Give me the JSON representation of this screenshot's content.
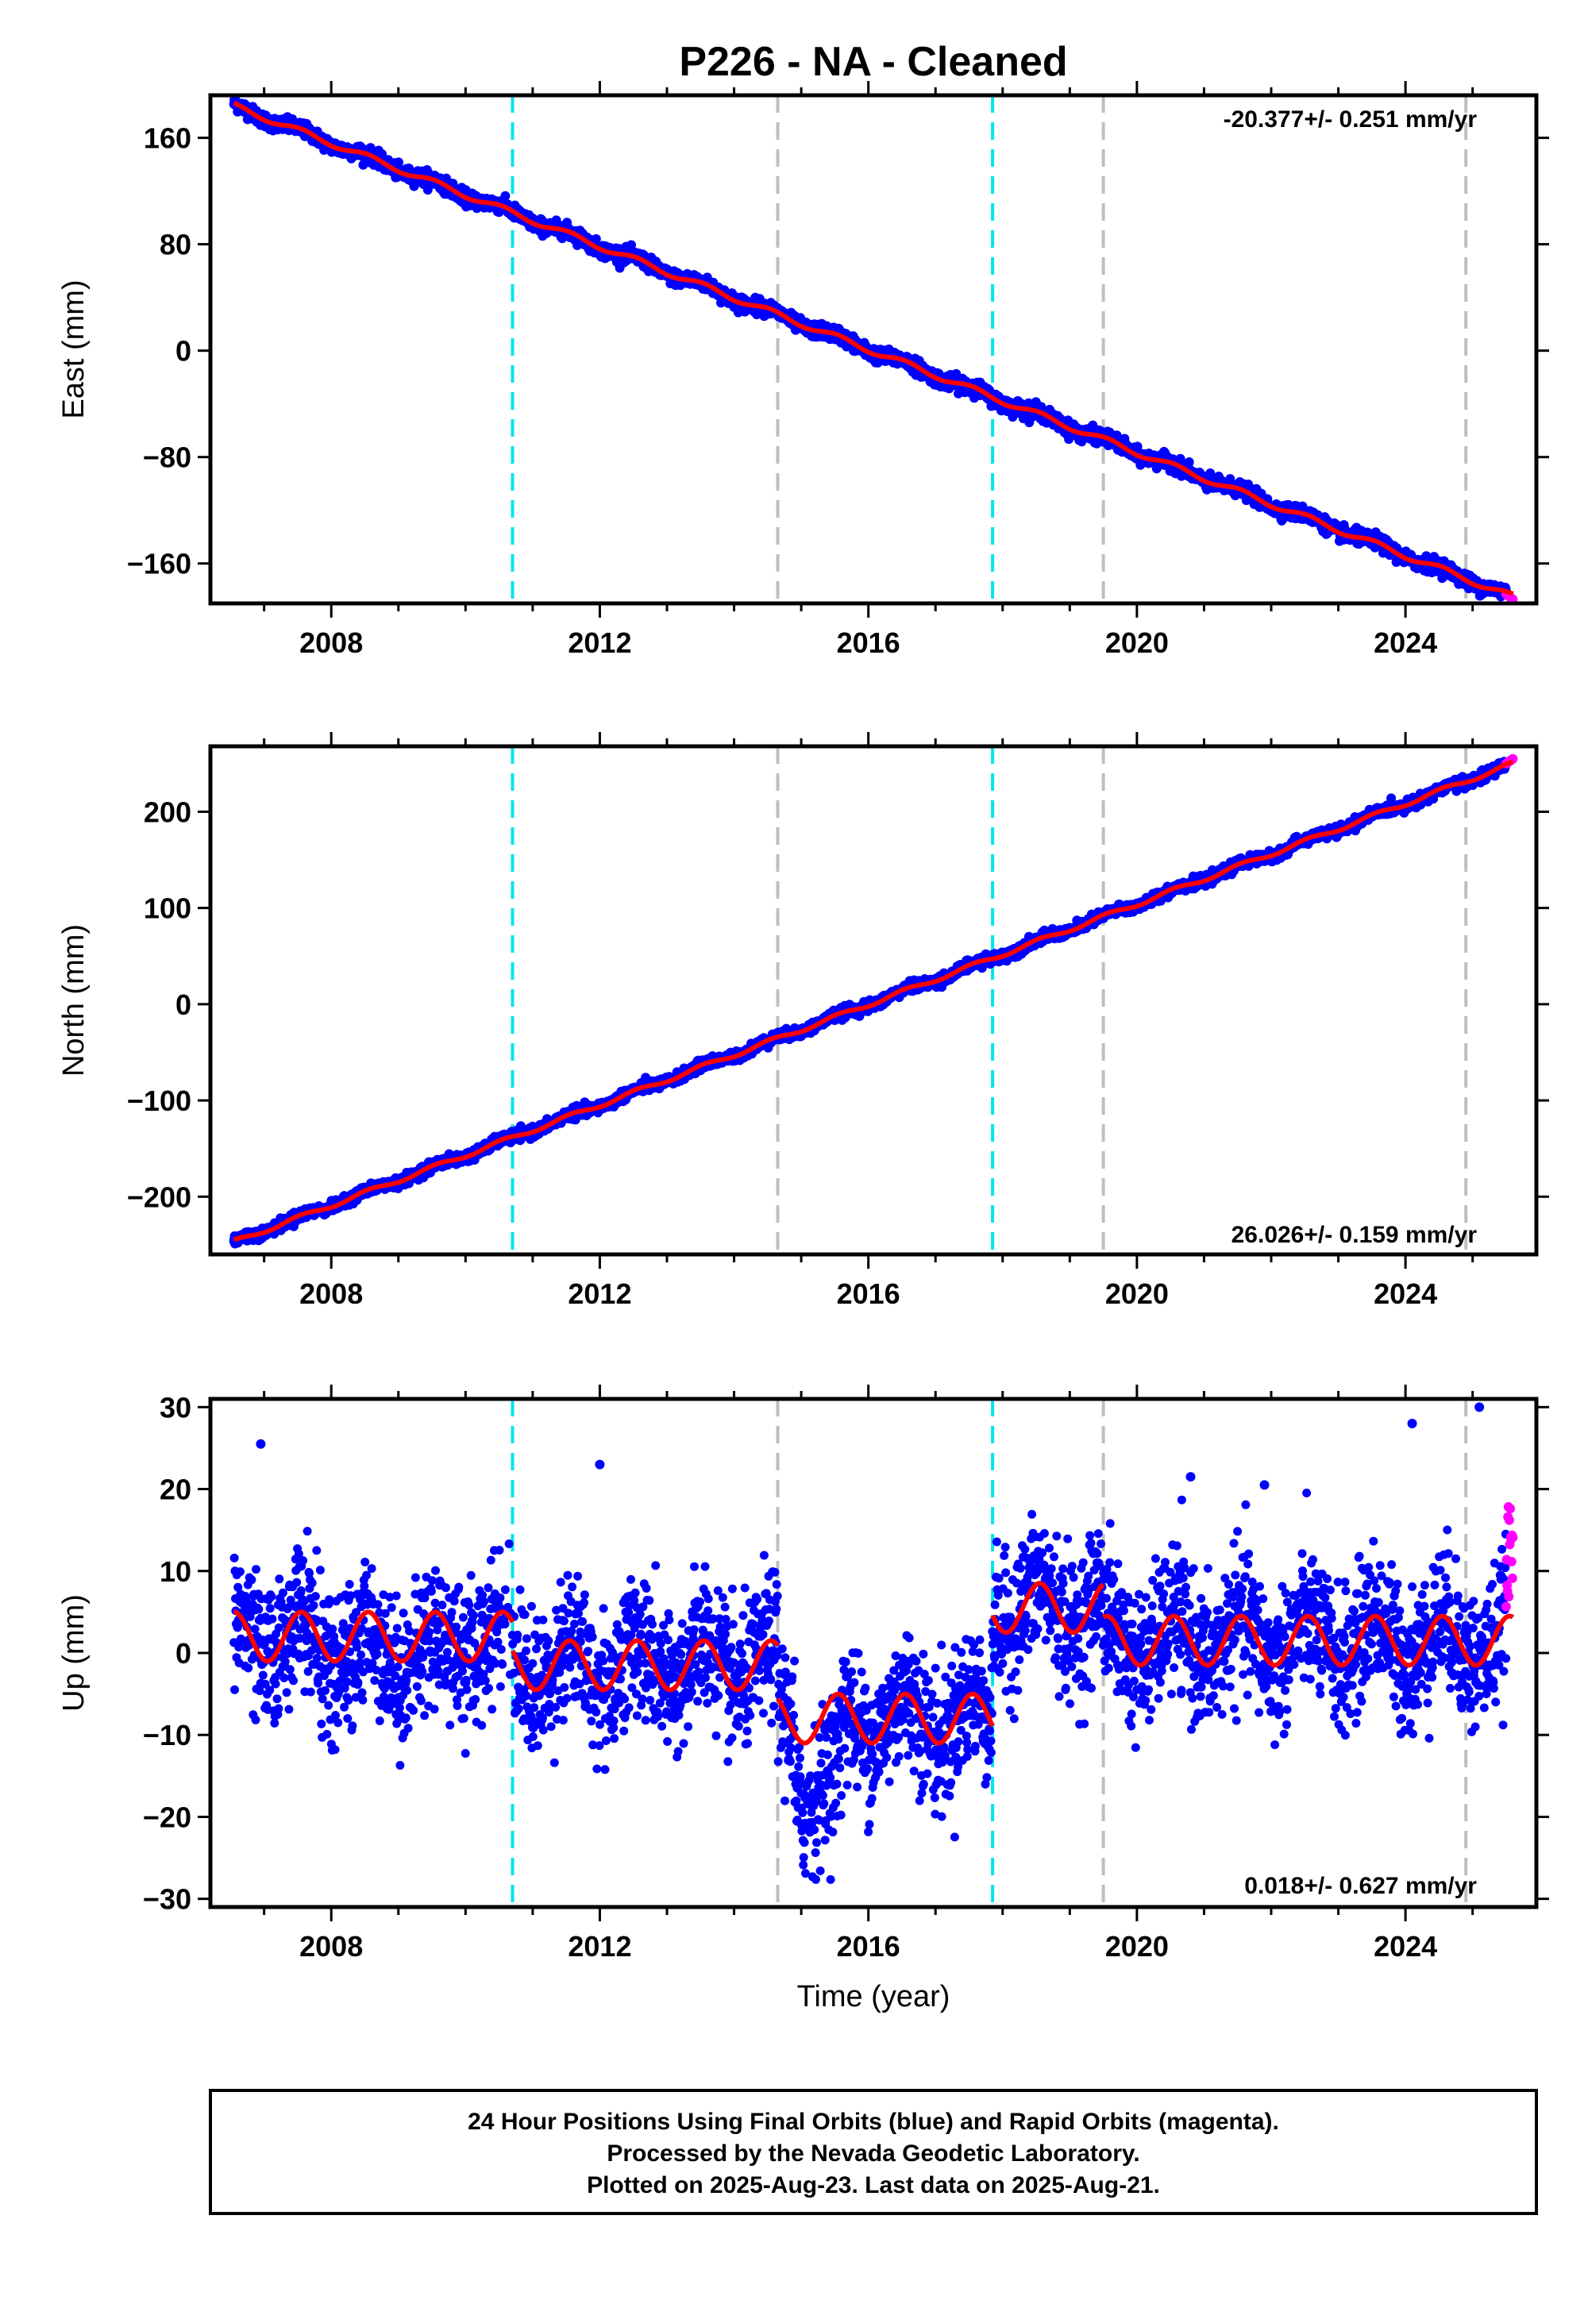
{
  "title": "P226  - NA - Cleaned",
  "colors": {
    "final_orbits": "#0000ff",
    "rapid_orbits": "#ff00ff",
    "model_fit": "#ff0000",
    "antenna_change": "#00e5ee",
    "equipment_change": "#bebebe"
  },
  "chart_data": [
    {
      "type": "scatter",
      "panel": "east",
      "ylabel": "East (mm)",
      "xlabel": "",
      "xlim": [
        2006.2,
        2025.95
      ],
      "ylim": [
        -190,
        192
      ],
      "xticks": [
        2008,
        2012,
        2016,
        2020,
        2024
      ],
      "yticks": [
        -160,
        -80,
        0,
        80,
        160
      ],
      "rate_label": "-20.377+/- 0.251 mm/yr",
      "rate_position": "top-right",
      "fit": {
        "x": [
          2006.55,
          2025.6
        ],
        "y": [
          184,
          -185
        ]
      },
      "rapid": {
        "x_start": 2025.5,
        "x_end": 2025.6,
        "y_start": -183,
        "y_end": -187
      },
      "vlines": [
        {
          "x": 2010.7,
          "kind": "antenna_change"
        },
        {
          "x": 2014.65,
          "kind": "equipment_change"
        },
        {
          "x": 2017.85,
          "kind": "antenna_change"
        },
        {
          "x": 2019.5,
          "kind": "equipment_change"
        },
        {
          "x": 2024.9,
          "kind": "equipment_change"
        }
      ]
    },
    {
      "type": "scatter",
      "panel": "north",
      "ylabel": "North (mm)",
      "xlabel": "",
      "xlim": [
        2006.2,
        2025.95
      ],
      "ylim": [
        -260,
        268
      ],
      "xticks": [
        2008,
        2012,
        2016,
        2020,
        2024
      ],
      "yticks": [
        -200,
        -100,
        0,
        100,
        200
      ],
      "rate_label": "26.026+/- 0.159 mm/yr",
      "rate_position": "bottom-right",
      "fit": {
        "x": [
          2006.55,
          2025.6
        ],
        "y": [
          -247,
          250
        ]
      },
      "rapid": {
        "x_start": 2025.5,
        "x_end": 2025.6,
        "y_start": 250,
        "y_end": 255
      },
      "vlines": [
        {
          "x": 2010.7,
          "kind": "antenna_change"
        },
        {
          "x": 2014.65,
          "kind": "equipment_change"
        },
        {
          "x": 2017.85,
          "kind": "antenna_change"
        },
        {
          "x": 2019.5,
          "kind": "equipment_change"
        },
        {
          "x": 2024.9,
          "kind": "equipment_change"
        }
      ]
    },
    {
      "type": "scatter",
      "panel": "up",
      "ylabel": "Up (mm)",
      "xlabel": "Time (year)",
      "xlim": [
        2006.2,
        2025.95
      ],
      "ylim": [
        -31,
        31
      ],
      "xticks": [
        2008,
        2012,
        2016,
        2020,
        2024
      ],
      "yticks": [
        -30,
        -20,
        -10,
        0,
        10,
        20,
        30
      ],
      "rate_label": "0.018+/- 0.627 mm/yr",
      "rate_position": "bottom-right",
      "seasonal_amplitude": 3,
      "fit_segments": [
        {
          "x0": 2006.55,
          "x1": 2010.7,
          "offset": 2
        },
        {
          "x0": 2010.7,
          "x1": 2014.65,
          "offset": -1.5
        },
        {
          "x0": 2014.65,
          "x1": 2017.85,
          "offset": -8
        },
        {
          "x0": 2017.85,
          "x1": 2019.5,
          "offset": 5.5
        },
        {
          "x0": 2019.5,
          "x1": 2025.6,
          "offset": 1.5
        }
      ],
      "rapid": {
        "x_start": 2025.5,
        "x_end": 2025.6,
        "y_min": 5,
        "y_max": 19
      },
      "outliers": [
        {
          "x": 2006.95,
          "y": 25.5
        },
        {
          "x": 2012.0,
          "y": 23
        },
        {
          "x": 2020.8,
          "y": 21.5
        },
        {
          "x": 2021.9,
          "y": 20.5
        },
        {
          "x": 2024.1,
          "y": 28
        },
        {
          "x": 2025.1,
          "y": 30
        }
      ],
      "vlines": [
        {
          "x": 2010.7,
          "kind": "antenna_change"
        },
        {
          "x": 2014.65,
          "kind": "equipment_change"
        },
        {
          "x": 2017.85,
          "kind": "antenna_change"
        },
        {
          "x": 2019.5,
          "kind": "equipment_change"
        },
        {
          "x": 2024.9,
          "kind": "equipment_change"
        }
      ]
    }
  ],
  "footer": {
    "line1": "24 Hour Positions Using Final Orbits (blue) and Rapid Orbits (magenta).",
    "line2": "Processed by the Nevada Geodetic Laboratory.",
    "line3": "Plotted on 2025-Aug-23. Last data on 2025-Aug-21."
  }
}
